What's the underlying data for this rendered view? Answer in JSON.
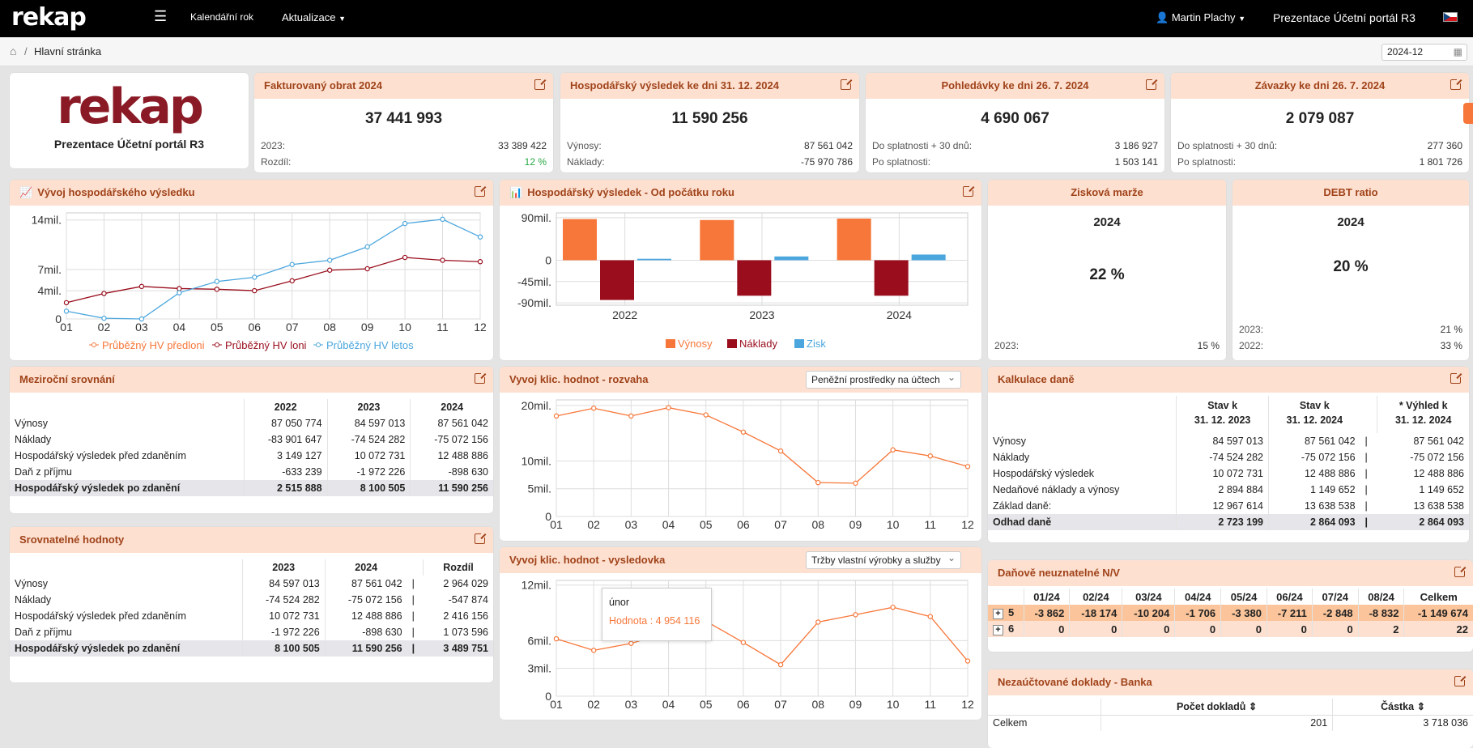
{
  "app": {
    "logo": "rekap",
    "menu_items": [
      "Kalendářní rok",
      "Aktualizace"
    ],
    "user": "Martin Plachy",
    "portal": "Prezentace Účetní portál R3"
  },
  "breadcrumb": {
    "page": "Hlavní stránka",
    "period": "2024-12"
  },
  "logo_card": {
    "logo": "rekap",
    "caption": "Prezentace Účetní portál R3"
  },
  "kpi": [
    {
      "title": "Fakturovaný obrat 2024",
      "value": "37 441 993",
      "rows": [
        [
          "2023:",
          "33 389 422"
        ],
        [
          "Rozdíl:",
          "12 %"
        ]
      ]
    },
    {
      "title": "Hospodářský výsledek ke dni 31. 12. 2024",
      "value": "11 590 256",
      "rows": [
        [
          "Výnosy:",
          "87 561 042"
        ],
        [
          "Náklady:",
          "-75 970 786"
        ]
      ]
    },
    {
      "title": "Pohledávky ke dni 26. 7. 2024",
      "value": "4 690 067",
      "rows": [
        [
          "Do splatnosti + 30 dnů:",
          "3 186 927"
        ],
        [
          "Po splatnosti:",
          "1 503 141"
        ]
      ]
    },
    {
      "title": "Závazky ke dni 26. 7. 2024",
      "value": "2 079 087",
      "rows": [
        [
          "Do splatnosti + 30 dnů:",
          "277 360"
        ],
        [
          "Po splatnosti:",
          "1 801 726"
        ]
      ]
    }
  ],
  "colors": {
    "orange": "#f7773a",
    "darkred": "#990d1c",
    "blue": "#4ba6dd",
    "positive": "#27a844",
    "header_bg": "#fde0d0",
    "header_fg": "#a0431a"
  },
  "hv_chart": {
    "title": "Vývoj hospodářského výsledku",
    "chart_data": {
      "type": "line",
      "x": [
        "01",
        "02",
        "03",
        "04",
        "05",
        "06",
        "07",
        "08",
        "09",
        "10",
        "11",
        "12"
      ],
      "yticks": [
        "14mil.",
        "7mil.",
        "4mil.",
        "0"
      ],
      "ytick_values": [
        14,
        7,
        4,
        0
      ],
      "ylim": [
        0,
        15
      ],
      "series": [
        {
          "name": "Průběžný HV předloni",
          "values": [
            null,
            null,
            null,
            null,
            null,
            null,
            null,
            null,
            null,
            null,
            null,
            null
          ]
        },
        {
          "name": "Průběžný HV loni",
          "values": [
            2.3,
            3.6,
            4.6,
            4.3,
            4.2,
            4.0,
            5.4,
            6.9,
            7.1,
            8.7,
            8.3,
            8.1
          ]
        },
        {
          "name": "Průběžný HV letos",
          "values": [
            1.1,
            0.1,
            0.0,
            3.7,
            5.3,
            5.9,
            7.7,
            8.3,
            10.2,
            13.5,
            14.1,
            11.6
          ]
        }
      ]
    }
  },
  "hv_ytd": {
    "title": "Hospodářský výsledek - Od počátku roku",
    "chart_data": {
      "type": "bar",
      "categories": [
        "2022",
        "2023",
        "2024"
      ],
      "yticks": [
        "90mil.",
        "0",
        "-45mil.",
        "-90mil."
      ],
      "ytick_values": [
        90,
        0,
        -45,
        -90
      ],
      "ylim": [
        -95,
        100
      ],
      "series": [
        {
          "name": "Výnosy",
          "values": [
            87,
            85,
            88
          ]
        },
        {
          "name": "Náklady",
          "values": [
            -84,
            -75,
            -75
          ]
        },
        {
          "name": "Zisk",
          "values": [
            3,
            8,
            12
          ]
        }
      ]
    }
  },
  "margin": {
    "title": "Zisková marže",
    "year": "2024",
    "value": "22 %",
    "rows": [
      [
        "2023:",
        "15 %"
      ]
    ]
  },
  "debt": {
    "title": "DEBT ratio",
    "year": "2024",
    "value": "20 %",
    "rows": [
      [
        "2023:",
        "21 %"
      ],
      [
        "2022:",
        "33 %"
      ]
    ]
  },
  "yoy": {
    "title": "Meziroční srovnání",
    "cols": [
      "2022",
      "2023",
      "2024"
    ],
    "rows": [
      [
        "Výnosy",
        "87 050 774",
        "84 597 013",
        "87 561 042"
      ],
      [
        "Náklady",
        "-83 901 647",
        "-74 524 282",
        "-75 072 156"
      ],
      [
        "Hospodářský výsledek před zdaněním",
        "3 149 127",
        "10 072 731",
        "12 488 886"
      ],
      [
        "Daň z příjmu",
        "-633 239",
        "-1 972 226",
        "-898 630"
      ]
    ],
    "total": [
      "Hospodářský výsledek po zdanění",
      "2 515 888",
      "8 100 505",
      "11 590 256"
    ]
  },
  "comp": {
    "title": "Srovnatelné hodnoty",
    "cols": [
      "2023",
      "2024",
      "Rozdíl"
    ],
    "sep": "|",
    "rows": [
      [
        "Výnosy",
        "84 597 013",
        "87 561 042",
        "2 964 029"
      ],
      [
        "Náklady",
        "-74 524 282",
        "-75 072 156",
        "-547 874"
      ],
      [
        "Hospodářský výsledek před zdaněním",
        "10 072 731",
        "12 488 886",
        "2 416 156"
      ],
      [
        "Daň z příjmu",
        "-1 972 226",
        "-898 630",
        "1 073 596"
      ]
    ],
    "total": [
      "Hospodářský výsledek po zdanění",
      "8 100 505",
      "11 590 256",
      "3 489 751"
    ]
  },
  "rozvaha": {
    "title": "Vyvoj klic. hodnot - rozvaha",
    "select": "Peněžní prostředky na účtech",
    "chart_data": {
      "type": "line",
      "x": [
        "01",
        "02",
        "03",
        "04",
        "05",
        "06",
        "07",
        "08",
        "09",
        "10",
        "11",
        "12"
      ],
      "yticks": [
        "20mil.",
        "10mil.",
        "5mil.",
        "0"
      ],
      "ytick_values": [
        20,
        10,
        5,
        0
      ],
      "ylim": [
        0,
        21
      ],
      "series": [
        {
          "values": [
            18.1,
            19.5,
            18.1,
            19.6,
            18.3,
            15.2,
            11.8,
            6.1,
            6.0,
            12.0,
            10.9,
            9.0
          ]
        }
      ]
    }
  },
  "vysledovka": {
    "title": "Vyvoj klic. hodnot - vysledovka",
    "select": "Tržby vlastní výrobky a služby",
    "tooltip": {
      "month": "únor",
      "label": "Hodnota : 4 954 116"
    },
    "chart_data": {
      "type": "line",
      "x": [
        "01",
        "02",
        "03",
        "04",
        "05",
        "06",
        "07",
        "08",
        "09",
        "10",
        "11",
        "12"
      ],
      "yticks": [
        "12mil.",
        "6mil.",
        "3mil.",
        "0"
      ],
      "ytick_values": [
        12,
        6,
        3,
        0
      ],
      "ylim": [
        0,
        12.5
      ],
      "series": [
        {
          "values": [
            6.2,
            4.95,
            5.7,
            6.9,
            8.1,
            5.8,
            3.4,
            8.0,
            8.8,
            9.6,
            8.6,
            3.8
          ]
        }
      ]
    }
  },
  "tax": {
    "title": "Kalkulace daně",
    "cols": [
      [
        "Stav k",
        "31. 12. 2023"
      ],
      [
        "Stav k",
        "31. 12. 2024"
      ],
      [
        "* Výhled k",
        "31. 12. 2024"
      ]
    ],
    "sep": "|",
    "rows": [
      [
        "Výnosy",
        "84 597 013",
        "87 561 042",
        "87 561 042"
      ],
      [
        "Náklady",
        "-74 524 282",
        "-75 072 156",
        "-75 072 156"
      ],
      [
        "Hospodářský výsledek",
        "10 072 731",
        "12 488 886",
        "12 488 886"
      ],
      [
        "Nedaňové náklady a výnosy",
        "2 894 884",
        "1 149 652",
        "1 149 652"
      ],
      [
        "Základ daně:",
        "12 967 614",
        "13 638 538",
        "13 638 538"
      ]
    ],
    "total": [
      "Odhad daně",
      "2 723 199",
      "2 864 093",
      "2 864 093"
    ]
  },
  "nondeduct": {
    "title": "Daňově neuznatelné N/V",
    "cols": [
      "01/24",
      "02/24",
      "03/24",
      "04/24",
      "05/24",
      "06/24",
      "07/24",
      "08/24",
      "Celkem"
    ],
    "rows": [
      {
        "code": "5",
        "values": [
          "-3 862",
          "-18 174",
          "-10 204",
          "-1 706",
          "-3 380",
          "-7 211",
          "-2 848",
          "-8 832",
          "-1 149 674"
        ]
      },
      {
        "code": "6",
        "values": [
          "0",
          "0",
          "0",
          "0",
          "0",
          "0",
          "0",
          "2",
          "22"
        ]
      }
    ]
  },
  "bank": {
    "title": "Nezaúčtované doklady - Banka",
    "cols": [
      "Počet dokladů",
      "Částka"
    ],
    "rows": [
      [
        "Celkem",
        "201",
        "3 718 036"
      ]
    ]
  }
}
